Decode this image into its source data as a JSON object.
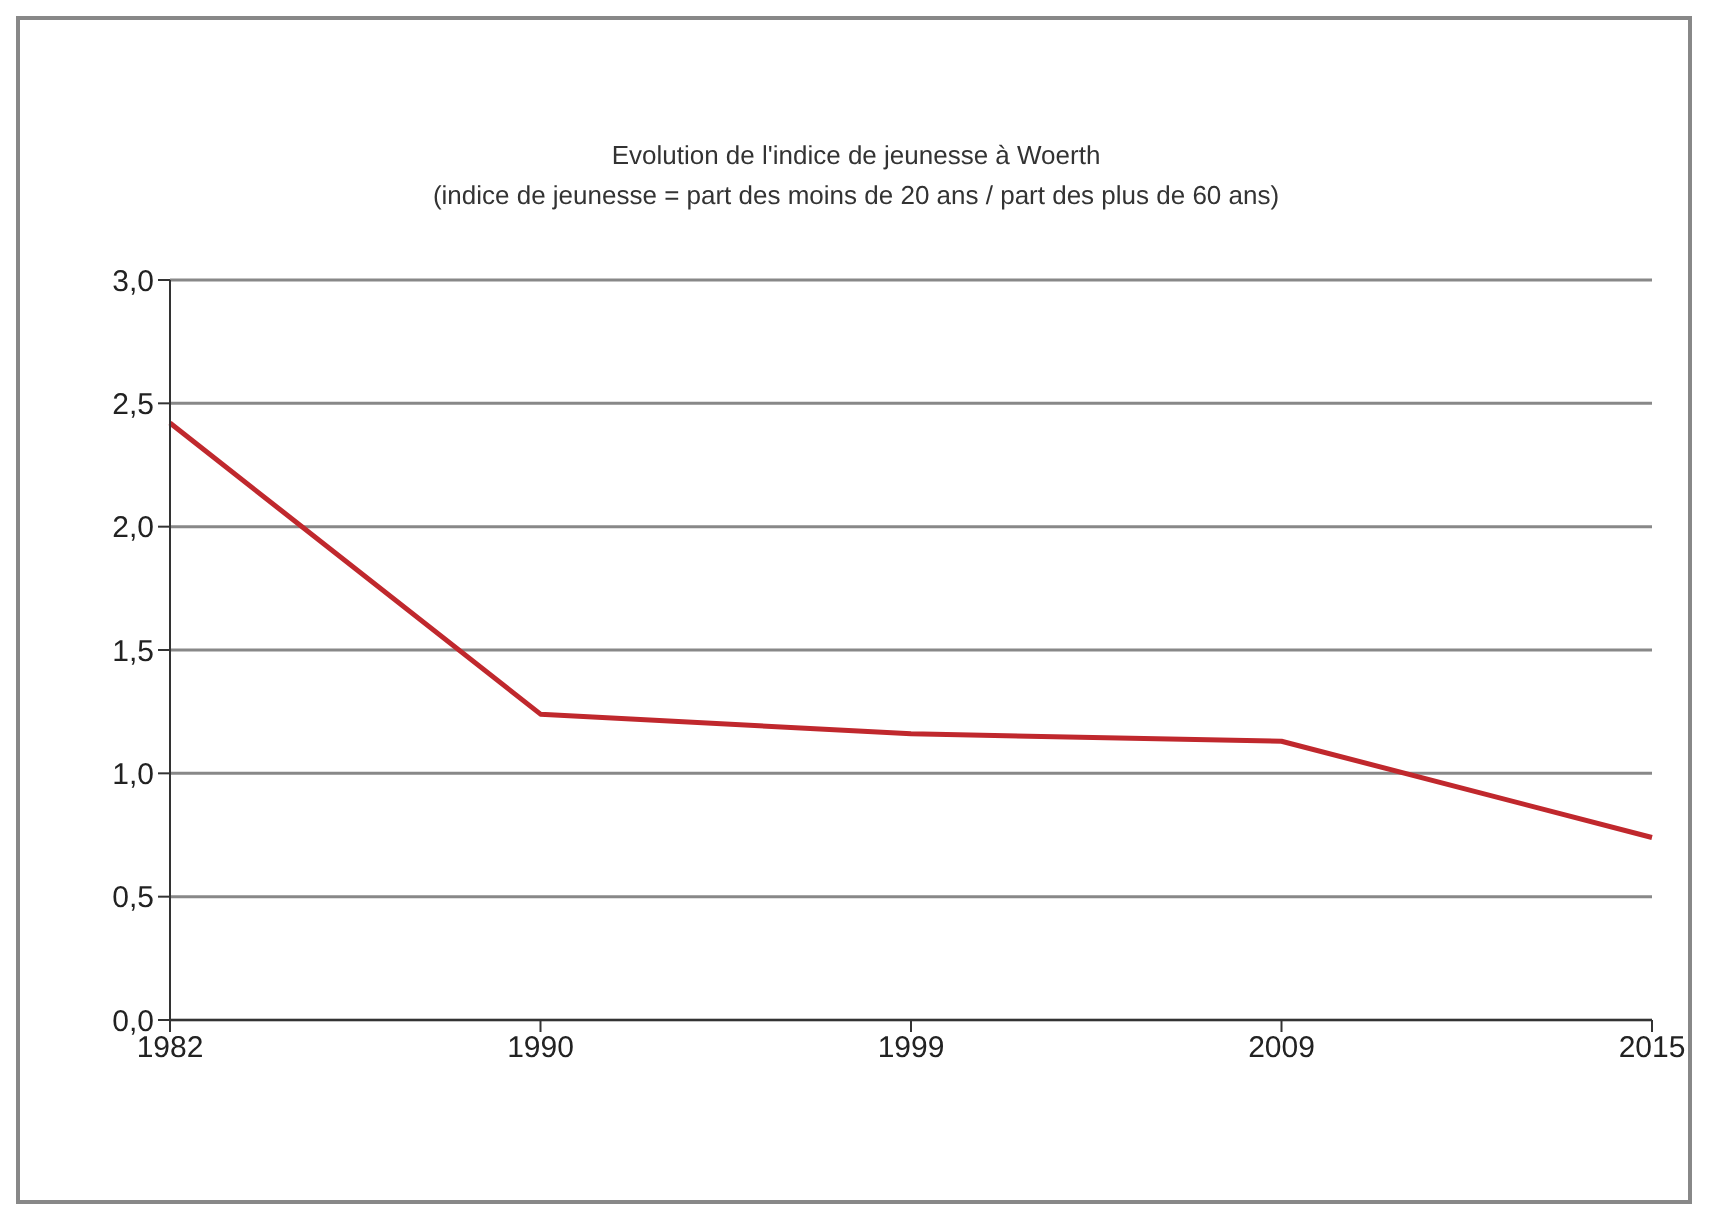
{
  "chart_data": {
    "type": "line",
    "title": "Evolution de l'indice de jeunesse à Woerth",
    "subtitle": "(indice de jeunesse = part des moins de 20 ans / part des plus de 60 ans)",
    "categories": [
      "1982",
      "1990",
      "1999",
      "2009",
      "2015"
    ],
    "series": [
      {
        "color": "#c0282d",
        "values": [
          2.42,
          1.24,
          1.16,
          1.13,
          0.74
        ]
      }
    ],
    "ylim": [
      0,
      3
    ],
    "yticks": [
      {
        "value": 0,
        "label": "0,0"
      },
      {
        "value": 0.5,
        "label": "0,5"
      },
      {
        "value": 1,
        "label": "1,0"
      },
      {
        "value": 1.5,
        "label": "1,5"
      },
      {
        "value": 2,
        "label": "2,0"
      },
      {
        "value": 2.5,
        "label": "2,5"
      },
      {
        "value": 3,
        "label": "3,0"
      }
    ],
    "grid": "y",
    "legend": false,
    "marker": "none",
    "line_style": "solid"
  }
}
